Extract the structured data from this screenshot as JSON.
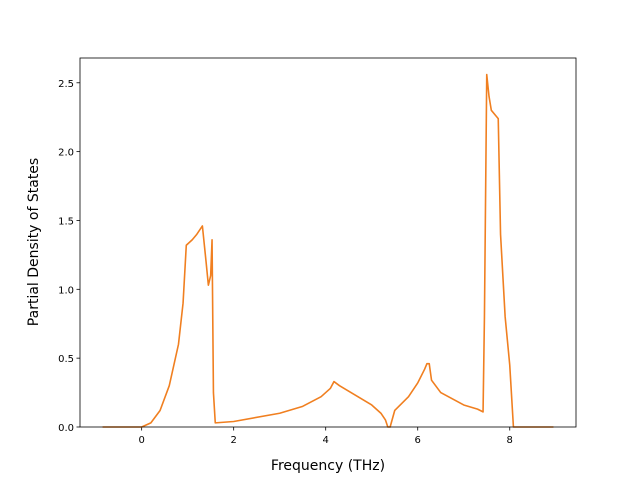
{
  "chart_data": {
    "type": "line",
    "x_label": "Frequency (THz)",
    "y_label": "Partial Density of States",
    "x": [
      -0.85,
      0,
      0.2,
      0.4,
      0.6,
      0.8,
      0.9,
      0.97,
      1.1,
      1.2,
      1.32,
      1.4,
      1.45,
      1.5,
      1.53,
      1.56,
      1.6,
      2,
      3,
      3.5,
      3.9,
      4.1,
      4.18,
      4.3,
      4.6,
      5,
      5.2,
      5.3,
      5.35,
      5.4,
      5.5,
      5.8,
      6.0,
      6.15,
      6.2,
      6.25,
      6.3,
      6.5,
      7,
      7.3,
      7.42,
      7.45,
      7.5,
      7.55,
      7.6,
      7.7,
      7.75,
      7.8,
      7.9,
      8.0,
      8.08,
      8.95
    ],
    "series": [
      {
        "color": "#f07f20",
        "values": [
          0,
          0,
          0.03,
          0.12,
          0.3,
          0.6,
          0.9,
          1.32,
          1.36,
          1.4,
          1.46,
          1.2,
          1.03,
          1.1,
          1.36,
          0.25,
          0.03,
          0.04,
          0.1,
          0.15,
          0.22,
          0.28,
          0.33,
          0.3,
          0.24,
          0.16,
          0.1,
          0.05,
          0,
          0,
          0.12,
          0.22,
          0.32,
          0.42,
          0.46,
          0.46,
          0.34,
          0.25,
          0.16,
          0.13,
          0.11,
          0.8,
          2.56,
          2.4,
          2.3,
          2.26,
          2.24,
          1.4,
          0.8,
          0.45,
          0,
          0
        ]
      }
    ],
    "xlim": [
      -1.34,
      9.44
    ],
    "ylim": [
      0,
      2.68
    ],
    "xticks": [
      0,
      2,
      4,
      6,
      8
    ],
    "yticks": [
      {
        "value": 0,
        "label": "0.0"
      },
      {
        "value": 0.5,
        "label": "0.5"
      },
      {
        "value": 1,
        "label": "1.0"
      },
      {
        "value": 1.5,
        "label": "1.5"
      },
      {
        "value": 2,
        "label": "2.0"
      },
      {
        "value": 2.5,
        "label": "2.5"
      }
    ]
  }
}
